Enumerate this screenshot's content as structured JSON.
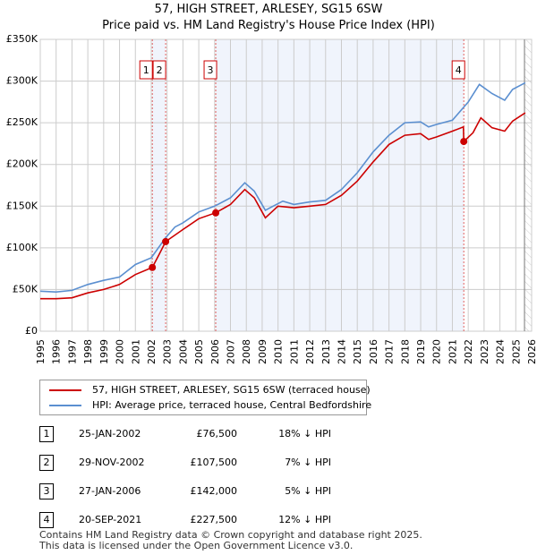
{
  "header": {
    "title": "57, HIGH STREET, ARLESEY, SG15 6SW",
    "subtitle": "Price paid vs. HM Land Registry's House Price Index (HPI)"
  },
  "chart_data": {
    "type": "line",
    "title": "57, HIGH STREET, ARLESEY, SG15 6SW",
    "subtitle": "Price paid vs. HM Land Registry's House Price Index (HPI)",
    "xlim": [
      1995,
      2026
    ],
    "ylim": [
      0,
      350000
    ],
    "x_ticks": [
      "1995",
      "1996",
      "1997",
      "1998",
      "1999",
      "2000",
      "2001",
      "2002",
      "2003",
      "2004",
      "2005",
      "2006",
      "2007",
      "2008",
      "2009",
      "2010",
      "2011",
      "2012",
      "2013",
      "2014",
      "2015",
      "2016",
      "2017",
      "2018",
      "2019",
      "2020",
      "2021",
      "2022",
      "2023",
      "2024",
      "2025",
      "2026"
    ],
    "y_ticks": [
      {
        "v": 0,
        "label": "£0"
      },
      {
        "v": 50000,
        "label": "£50K"
      },
      {
        "v": 100000,
        "label": "£100K"
      },
      {
        "v": 150000,
        "label": "£150K"
      },
      {
        "v": 200000,
        "label": "£200K"
      },
      {
        "v": 250000,
        "label": "£250K"
      },
      {
        "v": 300000,
        "label": "£300K"
      },
      {
        "v": 350000,
        "label": "£350K"
      }
    ],
    "grid": true,
    "series": [
      {
        "name": "57, HIGH STREET, ARLESEY, SG15 6SW (terraced house)",
        "color": "#cc0000",
        "x": [
          1995,
          1996,
          1997,
          1998,
          1999,
          2000,
          2001,
          2002.07,
          2002.5,
          2002.91,
          2004,
          2005,
          2006.07,
          2007,
          2007.9,
          2008.5,
          2009.2,
          2010,
          2011,
          2012,
          2013,
          2014,
          2015,
          2016,
          2017,
          2018,
          2019,
          2019.5,
          2020,
          2021,
          2021.7,
          2021.72,
          2022.3,
          2022.8,
          2023.5,
          2024.3,
          2024.8,
          2025.6
        ],
        "y": [
          39000,
          39000,
          40000,
          46000,
          50000,
          56000,
          68000,
          76500,
          92000,
          107500,
          122000,
          135000,
          142000,
          152000,
          170000,
          160000,
          136000,
          150000,
          148000,
          150000,
          152000,
          163000,
          180000,
          203000,
          224000,
          235000,
          237000,
          230000,
          233000,
          240000,
          245000,
          227500,
          238000,
          256000,
          244000,
          240000,
          252000,
          262000
        ]
      },
      {
        "name": "HPI: Average price, terraced house, Central Bedfordshire",
        "color": "#5b8fd0",
        "x": [
          1995,
          1996,
          1997,
          1998,
          1999,
          2000,
          2001,
          2002,
          2002.9,
          2003.5,
          2004,
          2005,
          2006,
          2007,
          2007.9,
          2008.5,
          2009.2,
          2009.5,
          2010.3,
          2011,
          2012,
          2013,
          2014,
          2015,
          2016,
          2017,
          2018,
          2019,
          2019.5,
          2020,
          2021,
          2022,
          2022.7,
          2023.5,
          2024.3,
          2024.8,
          2025.6
        ],
        "y": [
          48000,
          47000,
          49000,
          56000,
          61000,
          65000,
          80000,
          88000,
          112000,
          125000,
          130000,
          143000,
          150000,
          160000,
          178000,
          168000,
          145000,
          148000,
          156000,
          152000,
          155000,
          157000,
          170000,
          190000,
          215000,
          235000,
          250000,
          251000,
          245000,
          248000,
          253000,
          275000,
          296000,
          285000,
          277000,
          290000,
          298000
        ]
      }
    ],
    "sales": [
      {
        "n": "1",
        "date": "25-JAN-2002",
        "x": 2002.07,
        "price": "£76,500",
        "value": 76500,
        "hpi": "18% ↓ HPI"
      },
      {
        "n": "2",
        "date": "29-NOV-2002",
        "x": 2002.91,
        "price": "£107,500",
        "value": 107500,
        "hpi": "7% ↓ HPI"
      },
      {
        "n": "3",
        "date": "27-JAN-2006",
        "x": 2006.07,
        "price": "£142,000",
        "value": 142000,
        "hpi": "5% ↓ HPI"
      },
      {
        "n": "4",
        "date": "20-SEP-2021",
        "x": 2021.72,
        "price": "£227,500",
        "value": 227500,
        "hpi": "12% ↓ HPI"
      }
    ],
    "shaded_ranges": [
      [
        2002.07,
        2002.91
      ],
      [
        2006.07,
        2021.72
      ]
    ],
    "forecast_from": 2025.55,
    "legend": "below"
  },
  "legend": {
    "items": [
      {
        "label": "57, HIGH STREET, ARLESEY, SG15 6SW (terraced house)"
      },
      {
        "label": "HPI: Average price, terraced house, Central Bedfordshire"
      }
    ]
  },
  "footer": {
    "line1": "Contains HM Land Registry data © Crown copyright and database right 2025.",
    "line2": "This data is licensed under the Open Government Licence v3.0."
  }
}
